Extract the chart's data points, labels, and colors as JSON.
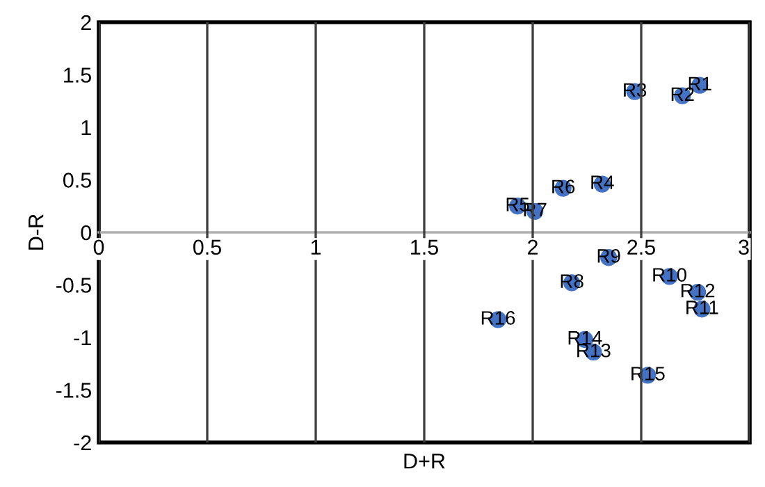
{
  "chart_data": {
    "type": "scatter",
    "xlabel": "D+R",
    "ylabel": "D-R",
    "x": [
      2.77,
      2.69,
      2.47,
      2.32,
      1.93,
      2.14,
      2.01,
      2.18,
      2.35,
      2.63,
      2.78,
      2.76,
      2.28,
      2.24,
      2.53,
      1.84
    ],
    "series": [
      {
        "color": "#4472c4",
        "values": [
          1.4,
          1.3,
          1.34,
          0.46,
          0.25,
          0.42,
          0.2,
          -0.48,
          -0.24,
          -0.42,
          -0.73,
          -0.57,
          -1.14,
          -1.02,
          -1.36,
          -0.83
        ]
      }
    ],
    "annotations": [
      {
        "text": "R1",
        "x": 2.77,
        "y": 1.4
      },
      {
        "text": "R2",
        "x": 2.69,
        "y": 1.3
      },
      {
        "text": "R3",
        "x": 2.47,
        "y": 1.34
      },
      {
        "text": "R4",
        "x": 2.32,
        "y": 0.46
      },
      {
        "text": "R5",
        "x": 1.93,
        "y": 0.25
      },
      {
        "text": "R6",
        "x": 2.14,
        "y": 0.42
      },
      {
        "text": "R7",
        "x": 2.01,
        "y": 0.2
      },
      {
        "text": "R8",
        "x": 2.18,
        "y": -0.48
      },
      {
        "text": "R9",
        "x": 2.35,
        "y": -0.24
      },
      {
        "text": "R10",
        "x": 2.63,
        "y": -0.42
      },
      {
        "text": "R11",
        "x": 2.78,
        "y": -0.73
      },
      {
        "text": "R12",
        "x": 2.76,
        "y": -0.57
      },
      {
        "text": "R13",
        "x": 2.28,
        "y": -1.14
      },
      {
        "text": "R14",
        "x": 2.24,
        "y": -1.02
      },
      {
        "text": "R15",
        "x": 2.53,
        "y": -1.36
      },
      {
        "text": "R16",
        "x": 1.84,
        "y": -0.83
      }
    ],
    "xlim": [
      0,
      3
    ],
    "ylim": [
      -2,
      2
    ],
    "xticks": [
      0,
      0.5,
      1,
      1.5,
      2,
      2.5,
      3
    ],
    "yticks": [
      -2,
      -1.5,
      -1,
      -0.5,
      0,
      0.5,
      1,
      1.5,
      2
    ],
    "grid": "x",
    "marker": "circle",
    "legend": false
  }
}
